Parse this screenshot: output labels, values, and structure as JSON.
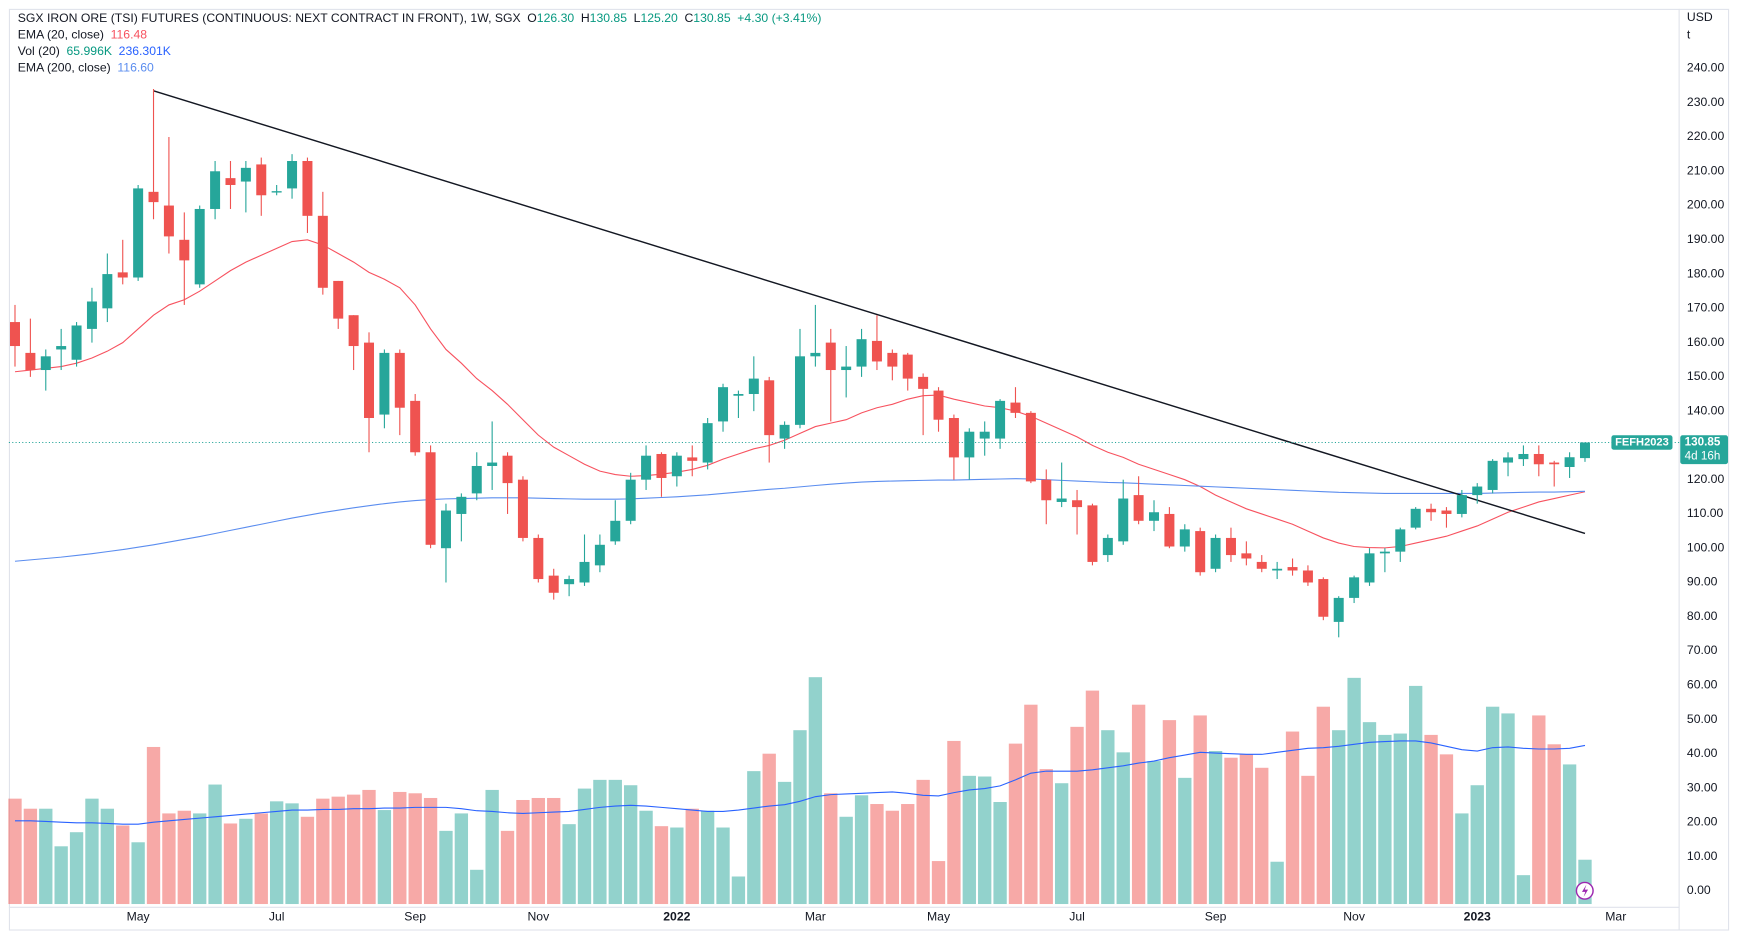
{
  "chart_data": {
    "type": "candlestick",
    "title": "SGX IRON ORE (TSI) FUTURES (CONTINUOUS: NEXT CONTRACT IN FRONT), 1W, SGX",
    "legend": {
      "open_prefix": "O",
      "open": "126.30",
      "high_prefix": "H",
      "high": "130.85",
      "low_prefix": "L",
      "low": "125.20",
      "close_prefix": "C",
      "close": "130.85",
      "change": "+4.30 (+3.41%)"
    },
    "categories": [
      null,
      null,
      null,
      null,
      null,
      null,
      null,
      null,
      "May",
      null,
      null,
      null,
      null,
      null,
      null,
      null,
      null,
      "Jul",
      null,
      null,
      null,
      null,
      null,
      null,
      null,
      null,
      "Sep",
      null,
      null,
      null,
      null,
      null,
      null,
      null,
      "Nov",
      null,
      null,
      null,
      null,
      null,
      null,
      null,
      null,
      "2022",
      null,
      null,
      null,
      null,
      null,
      null,
      null,
      null,
      "Mar",
      null,
      null,
      null,
      null,
      null,
      null,
      null,
      "May",
      null,
      null,
      null,
      null,
      null,
      null,
      null,
      null,
      "Jul",
      null,
      null,
      null,
      null,
      null,
      null,
      null,
      null,
      "Sep",
      null,
      null,
      null,
      null,
      null,
      null,
      null,
      null,
      "Nov",
      null,
      null,
      null,
      null,
      null,
      null,
      null,
      "2023",
      null,
      null,
      null,
      null,
      null,
      null,
      null,
      null,
      "Mar"
    ],
    "open": [
      166,
      157,
      152,
      158,
      155,
      164,
      170,
      180.5,
      179,
      204,
      200,
      190,
      177,
      199,
      208,
      207,
      212,
      203.8,
      205,
      213,
      197,
      178,
      168,
      160,
      139,
      157,
      143,
      128,
      100,
      110,
      116,
      124,
      127,
      120,
      103,
      92,
      89.5,
      90,
      95,
      102,
      108,
      120,
      127.5,
      121,
      126.5,
      125,
      137,
      144.5,
      145,
      149,
      132,
      136,
      156,
      160,
      152,
      153,
      160.5,
      157,
      156.5,
      150,
      146,
      138,
      126.5,
      132,
      132,
      142.5,
      139.5,
      120,
      113.5,
      114,
      112.5,
      98,
      102,
      115.5,
      108,
      110,
      100.5,
      105,
      94,
      103,
      98.5,
      96,
      93.5,
      94.5,
      93.5,
      91,
      78.5,
      85.5,
      90,
      98.5,
      99,
      106,
      111.5,
      111,
      110,
      115.5,
      117,
      125,
      126,
      127.5,
      125,
      123.7,
      126.3,
      null,
      null
    ],
    "high": [
      171,
      167,
      158,
      164,
      166,
      176,
      186,
      190,
      206,
      234,
      220,
      198,
      200,
      213,
      213,
      213,
      214,
      206,
      215,
      214,
      204,
      178,
      168,
      163,
      158,
      158,
      145,
      130,
      113,
      116,
      128,
      137,
      128,
      121,
      104,
      94,
      92,
      104,
      104,
      114,
      122,
      130,
      128,
      128,
      130,
      138,
      148,
      146,
      156,
      150,
      137,
      164,
      171,
      164,
      159,
      164,
      168,
      158,
      157,
      151,
      147,
      139,
      135,
      137,
      143.5,
      147,
      140,
      123,
      125,
      117,
      113,
      104,
      120,
      121,
      114,
      112,
      107,
      106,
      104,
      106,
      102,
      98,
      96,
      97,
      95,
      91.5,
      86,
      92,
      100,
      100,
      106,
      112,
      113,
      112,
      117,
      119,
      126,
      128,
      130,
      130,
      125.5,
      128,
      130.85,
      null,
      null
    ],
    "low": [
      153,
      150,
      146,
      152,
      153,
      160,
      166,
      177,
      178,
      196,
      186,
      171,
      176,
      196,
      199,
      198,
      197,
      203,
      202,
      192,
      174,
      164,
      152,
      128,
      135,
      133,
      127,
      100,
      90,
      102,
      114,
      117,
      110,
      102,
      90,
      85,
      86,
      89,
      93,
      101,
      107,
      117,
      115,
      118,
      121,
      123,
      134,
      138,
      140,
      125,
      129,
      135,
      153,
      137,
      144,
      150,
      152,
      149,
      146,
      133,
      134,
      120,
      120,
      127,
      129,
      138,
      119,
      107,
      112,
      104,
      95,
      96,
      101,
      107,
      105,
      100,
      99,
      92,
      93,
      96,
      95,
      93,
      91,
      92,
      89,
      79,
      74,
      84,
      89,
      93,
      96,
      105.5,
      108,
      106,
      109,
      113,
      116,
      121,
      124,
      121,
      118,
      120.5,
      125.2,
      null,
      null
    ],
    "close": [
      159,
      152,
      156,
      159,
      165,
      172,
      180,
      179,
      205,
      201,
      191,
      184,
      199,
      210,
      206,
      211,
      203,
      204.2,
      213,
      197,
      176,
      167,
      159,
      138,
      157,
      141,
      128,
      101,
      111,
      115,
      124,
      125,
      119,
      103,
      91,
      87,
      91,
      96,
      101,
      108,
      120,
      127,
      120.5,
      127,
      125.5,
      136.5,
      147,
      145,
      149.5,
      133,
      136,
      156,
      157,
      152,
      153,
      161,
      154.5,
      153,
      149.5,
      146.5,
      137.5,
      126.5,
      134,
      134,
      143,
      139.5,
      119.5,
      114,
      114.5,
      112,
      96,
      103,
      114.5,
      108,
      110.5,
      100.5,
      105.5,
      93,
      103,
      98,
      97,
      94,
      94,
      93.5,
      90,
      80,
      85.5,
      91.5,
      98.5,
      99,
      105.5,
      111.5,
      110.5,
      110,
      115.5,
      118,
      125.5,
      126.5,
      127.5,
      124.5,
      124.5,
      126.55,
      130.85,
      null,
      null
    ],
    "up_color": "#26a69a",
    "down_color": "#ef5350",
    "indicators": [
      {
        "name": "EMA (20, close)",
        "value_label": "116.48",
        "color": "#f7525f",
        "values": [
          151.5,
          152,
          152.5,
          153,
          154,
          155.5,
          157.5,
          160,
          164,
          168,
          171,
          172.5,
          175,
          178,
          181,
          183.5,
          185.5,
          187.5,
          189.5,
          190,
          188.5,
          186,
          183.5,
          180.5,
          178.5,
          176,
          171,
          164,
          158,
          154,
          149.5,
          146,
          142,
          137.5,
          133,
          129.5,
          127,
          124.5,
          122.5,
          121.5,
          121,
          121.2,
          121.6,
          122.2,
          123,
          124.2,
          126,
          127.5,
          129,
          130,
          131.5,
          133.5,
          135.5,
          136.5,
          137.5,
          139.5,
          141,
          142,
          143.5,
          144.5,
          144.7,
          143.5,
          142.5,
          141.5,
          141,
          140,
          138.5,
          136.5,
          134.5,
          132.5,
          130,
          128,
          126.5,
          124.5,
          123,
          121.5,
          120,
          118,
          115.5,
          113.5,
          111.5,
          110,
          108.5,
          107,
          105,
          103,
          101.5,
          100.5,
          100.2,
          100.1,
          100.5,
          101.5,
          102.5,
          103.5,
          105,
          106.5,
          108.5,
          110.5,
          112,
          113.5,
          114.5,
          115.5,
          116.48,
          null,
          null
        ]
      },
      {
        "name": "EMA (200, close)",
        "value_label": "116.60",
        "color": "#5b8def",
        "values": [
          96.2,
          96.6,
          97,
          97.4,
          97.9,
          98.4,
          99,
          99.6,
          100.3,
          101,
          101.8,
          102.6,
          103.4,
          104.3,
          105.2,
          106.1,
          107,
          107.9,
          108.8,
          109.6,
          110.4,
          111.1,
          111.8,
          112.4,
          113,
          113.5,
          113.9,
          114.2,
          114.4,
          114.5,
          114.6,
          114.7,
          114.7,
          114.7,
          114.6,
          114.5,
          114.4,
          114.3,
          114.3,
          114.3,
          114.4,
          114.6,
          114.8,
          115,
          115.3,
          115.6,
          116,
          116.4,
          116.8,
          117.2,
          117.5,
          117.9,
          118.3,
          118.7,
          119,
          119.3,
          119.5,
          119.6,
          119.7,
          119.8,
          119.9,
          119.9,
          120,
          120.1,
          120.2,
          120.3,
          120.2,
          120,
          119.8,
          119.6,
          119.4,
          119.2,
          119.1,
          118.9,
          118.7,
          118.5,
          118.3,
          118.1,
          117.9,
          117.7,
          117.5,
          117.3,
          117.1,
          116.9,
          116.7,
          116.5,
          116.3,
          116.2,
          116.1,
          116,
          116,
          116,
          116,
          116,
          116,
          116,
          116.1,
          116.2,
          116.3,
          116.4,
          116.4,
          116.5,
          116.6,
          null,
          null
        ]
      }
    ],
    "volume": {
      "name": "Vol (20)",
      "value_label": "65.996K",
      "ma_label": "236.301K",
      "up_color": "rgba(38,166,154,0.5)",
      "down_color": "rgba(239,83,80,0.5)",
      "ma_color": "#2962ff",
      "values": [
        157000,
        142000,
        142000,
        86000,
        107000,
        157000,
        142000,
        117000,
        92000,
        234000,
        135000,
        139000,
        135000,
        178000,
        120000,
        127000,
        135000,
        153000,
        150000,
        130000,
        157000,
        160000,
        163000,
        170000,
        140000,
        167000,
        165000,
        158000,
        109000,
        135000,
        51000,
        170000,
        109000,
        155000,
        158000,
        158000,
        119000,
        172000,
        185000,
        185000,
        177000,
        139000,
        116000,
        114000,
        142000,
        139000,
        114000,
        41000,
        198000,
        224000,
        182000,
        259000,
        338000,
        165000,
        130000,
        162000,
        149000,
        139000,
        149000,
        185000,
        64000,
        243000,
        191000,
        190000,
        152000,
        239000,
        297000,
        201000,
        180000,
        264000,
        318000,
        259000,
        226000,
        297000,
        213000,
        274000,
        188000,
        281000,
        228000,
        218000,
        223000,
        203000,
        63000,
        257000,
        191000,
        294000,
        259000,
        337000,
        271000,
        252000,
        254000,
        325000,
        252000,
        223000,
        135000,
        177000,
        294000,
        284000,
        43000,
        281000,
        238000,
        208000,
        65996,
        null,
        null
      ],
      "ma_values": [
        124000,
        124000,
        123000,
        122000,
        121000,
        121000,
        120000,
        119000,
        119000,
        122000,
        124000,
        126000,
        128000,
        130000,
        132000,
        134000,
        136000,
        138000,
        140000,
        140000,
        141000,
        141000,
        142000,
        142000,
        143000,
        143000,
        144000,
        144000,
        144000,
        142000,
        139000,
        138000,
        136000,
        135000,
        136000,
        137000,
        138000,
        141000,
        144000,
        146000,
        147000,
        146000,
        144000,
        142000,
        140000,
        138000,
        138000,
        140000,
        143000,
        146000,
        148000,
        153000,
        160000,
        163000,
        164000,
        165000,
        166000,
        167000,
        165000,
        162000,
        161000,
        166000,
        170000,
        172000,
        176000,
        185000,
        195000,
        198000,
        198000,
        198000,
        200000,
        203000,
        206000,
        210000,
        213000,
        218000,
        222000,
        226000,
        225000,
        224000,
        223000,
        223000,
        226000,
        229000,
        232000,
        233000,
        235000,
        238000,
        241000,
        242000,
        243000,
        243000,
        240000,
        235000,
        230000,
        228000,
        233000,
        234000,
        232000,
        231000,
        231000,
        232000,
        236301,
        null,
        null
      ]
    },
    "trend_line": {
      "index": [
        9,
        102
      ],
      "values": [
        233.5,
        104.3
      ]
    },
    "last_price": {
      "symbol": "FEFH2023",
      "countdown": "4d 16h"
    },
    "currency": "USD",
    "unit": "t",
    "ylim": [
      -4.8,
      257.4
    ],
    "yticks": [
      {
        "value": 0,
        "label": "0.00"
      },
      {
        "value": 10,
        "label": "10.00"
      },
      {
        "value": 20,
        "label": "20.00"
      },
      {
        "value": 30,
        "label": "30.00"
      },
      {
        "value": 40,
        "label": "40.00"
      },
      {
        "value": 50,
        "label": "50.00"
      },
      {
        "value": 60,
        "label": "60.00"
      },
      {
        "value": 70,
        "label": "70.00"
      },
      {
        "value": 80,
        "label": "80.00"
      },
      {
        "value": 90,
        "label": "90.00"
      },
      {
        "value": 100,
        "label": "100.00"
      },
      {
        "value": 110,
        "label": "110.00"
      },
      {
        "value": 120,
        "label": "120.00"
      },
      {
        "value": 130,
        "label": "130.00"
      },
      {
        "value": 140,
        "label": "140.00"
      },
      {
        "value": 150,
        "label": "150.00"
      },
      {
        "value": 160,
        "label": "160.00"
      },
      {
        "value": 170,
        "label": "170.00"
      },
      {
        "value": 180,
        "label": "180.00"
      },
      {
        "value": 190,
        "label": "190.00"
      },
      {
        "value": 200,
        "label": "200.00"
      },
      {
        "value": 210,
        "label": "210.00"
      },
      {
        "value": 220,
        "label": "220.00"
      },
      {
        "value": 230,
        "label": "230.00"
      },
      {
        "value": 240,
        "label": "240.00"
      }
    ],
    "grid": false
  }
}
